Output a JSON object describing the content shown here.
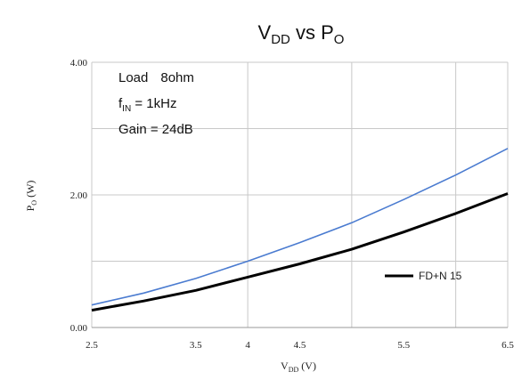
{
  "chart_data": {
    "type": "line",
    "title": {
      "main": "V",
      "sub1": "DD",
      "mid": " vs P",
      "sub2": "O"
    },
    "xlabel": {
      "main": "V",
      "sub": "DD",
      "rest": " (V)"
    },
    "ylabel": {
      "main": "P",
      "sub": "O",
      "rest": " (W)"
    },
    "xlim": [
      2.5,
      6.5
    ],
    "ylim": [
      0,
      4
    ],
    "x_ticks": [
      "2.5",
      "3.5",
      "4",
      "4.5",
      "5.5",
      "6.5"
    ],
    "x_tick_values": [
      2.5,
      3.5,
      4.0,
      4.5,
      5.5,
      6.5
    ],
    "y_ticks": [
      "0.00",
      "2.00",
      "4.00"
    ],
    "y_tick_values": [
      0,
      2,
      4
    ],
    "grid_x": [
      2.5,
      4.0,
      5.0,
      6.0,
      6.5
    ],
    "grid_y": [
      1,
      2,
      3,
      4
    ],
    "grid": true,
    "annotations": [
      {
        "main": "Load",
        "rest": "8ohm"
      },
      {
        "main": "f",
        "sub": "IN",
        "rest": " = 1kHz"
      },
      {
        "main": "Gain = 24dB"
      }
    ],
    "legend_position": "bottom-right",
    "series": [
      {
        "color": "#4a7bd0",
        "x": [
          2.5,
          3.0,
          3.5,
          4.0,
          4.5,
          5.0,
          5.5,
          6.0,
          6.5
        ],
        "y": [
          0.34,
          0.52,
          0.74,
          1.0,
          1.28,
          1.58,
          1.93,
          2.3,
          2.7
        ]
      },
      {
        "name": "FD+N 15",
        "color": "#000000",
        "x": [
          2.5,
          3.0,
          3.5,
          4.0,
          4.5,
          5.0,
          5.5,
          6.0,
          6.5
        ],
        "y": [
          0.26,
          0.4,
          0.56,
          0.76,
          0.96,
          1.18,
          1.44,
          1.72,
          2.02
        ]
      }
    ]
  }
}
